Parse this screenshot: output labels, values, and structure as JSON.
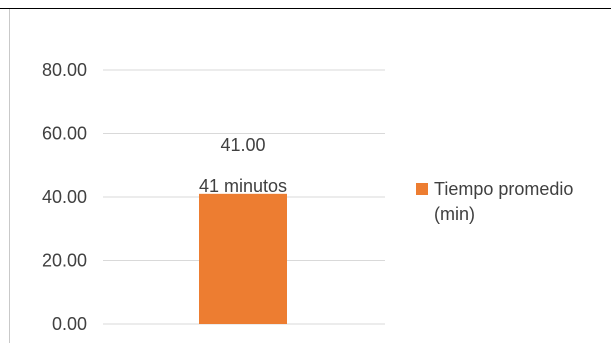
{
  "chart_data": {
    "type": "bar",
    "title": "",
    "xlabel": "",
    "ylabel": "",
    "categories": [
      ""
    ],
    "series": [
      {
        "name": "Tiempo promedio (min)",
        "values": [
          41.0
        ],
        "value_labels": [
          "41.00"
        ],
        "annotations": [
          "41 minutos"
        ]
      }
    ],
    "ylim": [
      0,
      80
    ],
    "yticks": [
      "0.00",
      "20.00",
      "40.00",
      "60.00",
      "80.00"
    ],
    "grid": true,
    "legend_position": "right",
    "legend_lines": [
      "Tiempo promedio",
      "(min)"
    ],
    "colors": {
      "bar": "#ed7d31",
      "grid": "#d9d9d9",
      "text": "#404040"
    }
  }
}
